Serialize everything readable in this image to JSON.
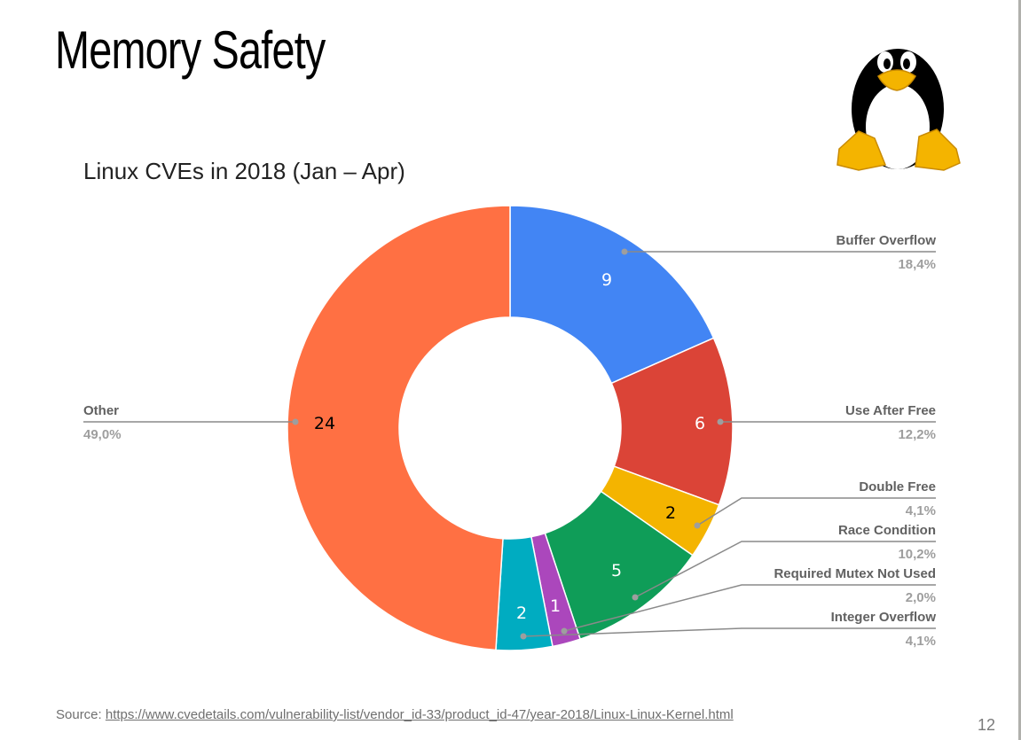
{
  "slide": {
    "title": "Memory Safety",
    "page_number": "12",
    "source_label": "Source: ",
    "source_link": "https://www.cvedetails.com/vulnerability-list/vendor_id-33/product_id-47/year-2018/Linux-Linux-Kernel.html",
    "logo": "tux-penguin-icon"
  },
  "chart_data": {
    "type": "pie",
    "donut": true,
    "title": "Linux CVEs in 2018 (Jan – Apr)",
    "start_angle": "12 o'clock, clockwise",
    "slices": [
      {
        "label": "Buffer Overflow",
        "value": 9,
        "percent": "18,4%",
        "color": "#4285f4",
        "value_color": "#ffffff"
      },
      {
        "label": "Use After Free",
        "value": 6,
        "percent": "12,2%",
        "color": "#db4437",
        "value_color": "#ffffff"
      },
      {
        "label": "Double Free",
        "value": 2,
        "percent": "4,1%",
        "color": "#f4b400",
        "value_color": "#000000"
      },
      {
        "label": "Race Condition",
        "value": 5,
        "percent": "10,2%",
        "color": "#0f9d58",
        "value_color": "#ffffff"
      },
      {
        "label": "Required Mutex Not Used",
        "value": 1,
        "percent": "2,0%",
        "color": "#ab47bc",
        "value_color": "#ffffff"
      },
      {
        "label": "Integer Overflow",
        "value": 2,
        "percent": "4,1%",
        "color": "#00acc1",
        "value_color": "#ffffff"
      },
      {
        "label": "Other",
        "value": 24,
        "percent": "49,0%",
        "color": "#ff7043",
        "value_color": "#000000"
      }
    ],
    "legend": "leader-line labels (right side, Other on left)"
  }
}
